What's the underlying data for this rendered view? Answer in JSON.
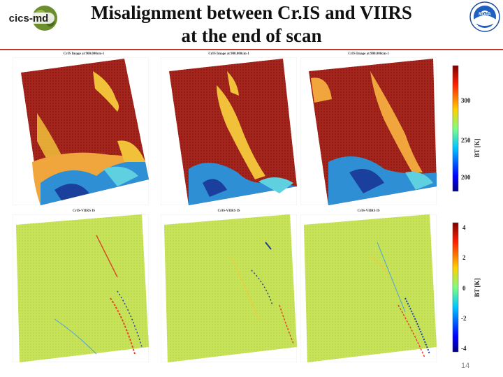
{
  "title_line1": "Misalignment between Cr.IS and VIIRS",
  "title_line2": "at the end of scan",
  "logo_left_text": "cics-md",
  "logo_right_text": "NOAA",
  "top_panel_title": "CrIS Image at 900.000cm-1",
  "bottom_panel_title": "CrIS-VIIRS IS",
  "colorbar_top": {
    "label": "BT [K]",
    "ticks": [
      "300",
      "250",
      "200"
    ]
  },
  "colorbar_bottom": {
    "label": "BT [K]",
    "ticks": [
      "4",
      "2",
      "0",
      "-2",
      "-4"
    ]
  },
  "slide_number": "14",
  "colors": {
    "rule": "#c0392b",
    "hot": "#a5251c",
    "cold": "#1d4fb8",
    "neutral": "#c8e25a"
  }
}
